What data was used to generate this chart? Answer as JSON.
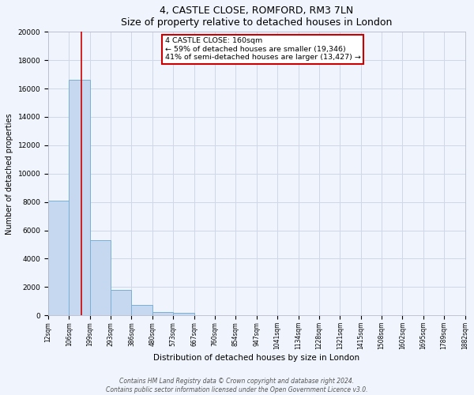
{
  "title": "4, CASTLE CLOSE, ROMFORD, RM3 7LN",
  "subtitle": "Size of property relative to detached houses in London",
  "bar_values": [
    8100,
    16600,
    5300,
    1800,
    750,
    250,
    200,
    0,
    0,
    0,
    0,
    0,
    0,
    0,
    0,
    0,
    0,
    0,
    0,
    0
  ],
  "x_labels": [
    "12sqm",
    "106sqm",
    "199sqm",
    "293sqm",
    "386sqm",
    "480sqm",
    "573sqm",
    "667sqm",
    "760sqm",
    "854sqm",
    "947sqm",
    "1041sqm",
    "1134sqm",
    "1228sqm",
    "1321sqm",
    "1415sqm",
    "1508sqm",
    "1602sqm",
    "1695sqm",
    "1789sqm",
    "1882sqm"
  ],
  "bar_color": "#c5d8f0",
  "bar_edge_color": "#7aafd4",
  "ylabel": "Number of detached properties",
  "xlabel": "Distribution of detached houses by size in London",
  "ylim": [
    0,
    20000
  ],
  "yticks": [
    0,
    2000,
    4000,
    6000,
    8000,
    10000,
    12000,
    14000,
    16000,
    18000,
    20000
  ],
  "property_line_x": 1.58,
  "property_line_color": "#cc0000",
  "annotation_title": "4 CASTLE CLOSE: 160sqm",
  "annotation_line1": "← 59% of detached houses are smaller (19,346)",
  "annotation_line2": "41% of semi-detached houses are larger (13,427) →",
  "annotation_box_color": "#cc0000",
  "annotation_box_fill": "#ffffff",
  "grid_color": "#d0d8e8",
  "background_color": "#f0f4fc",
  "footer_line1": "Contains HM Land Registry data © Crown copyright and database right 2024.",
  "footer_line2": "Contains public sector information licensed under the Open Government Licence v3.0.",
  "n_bars": 20
}
